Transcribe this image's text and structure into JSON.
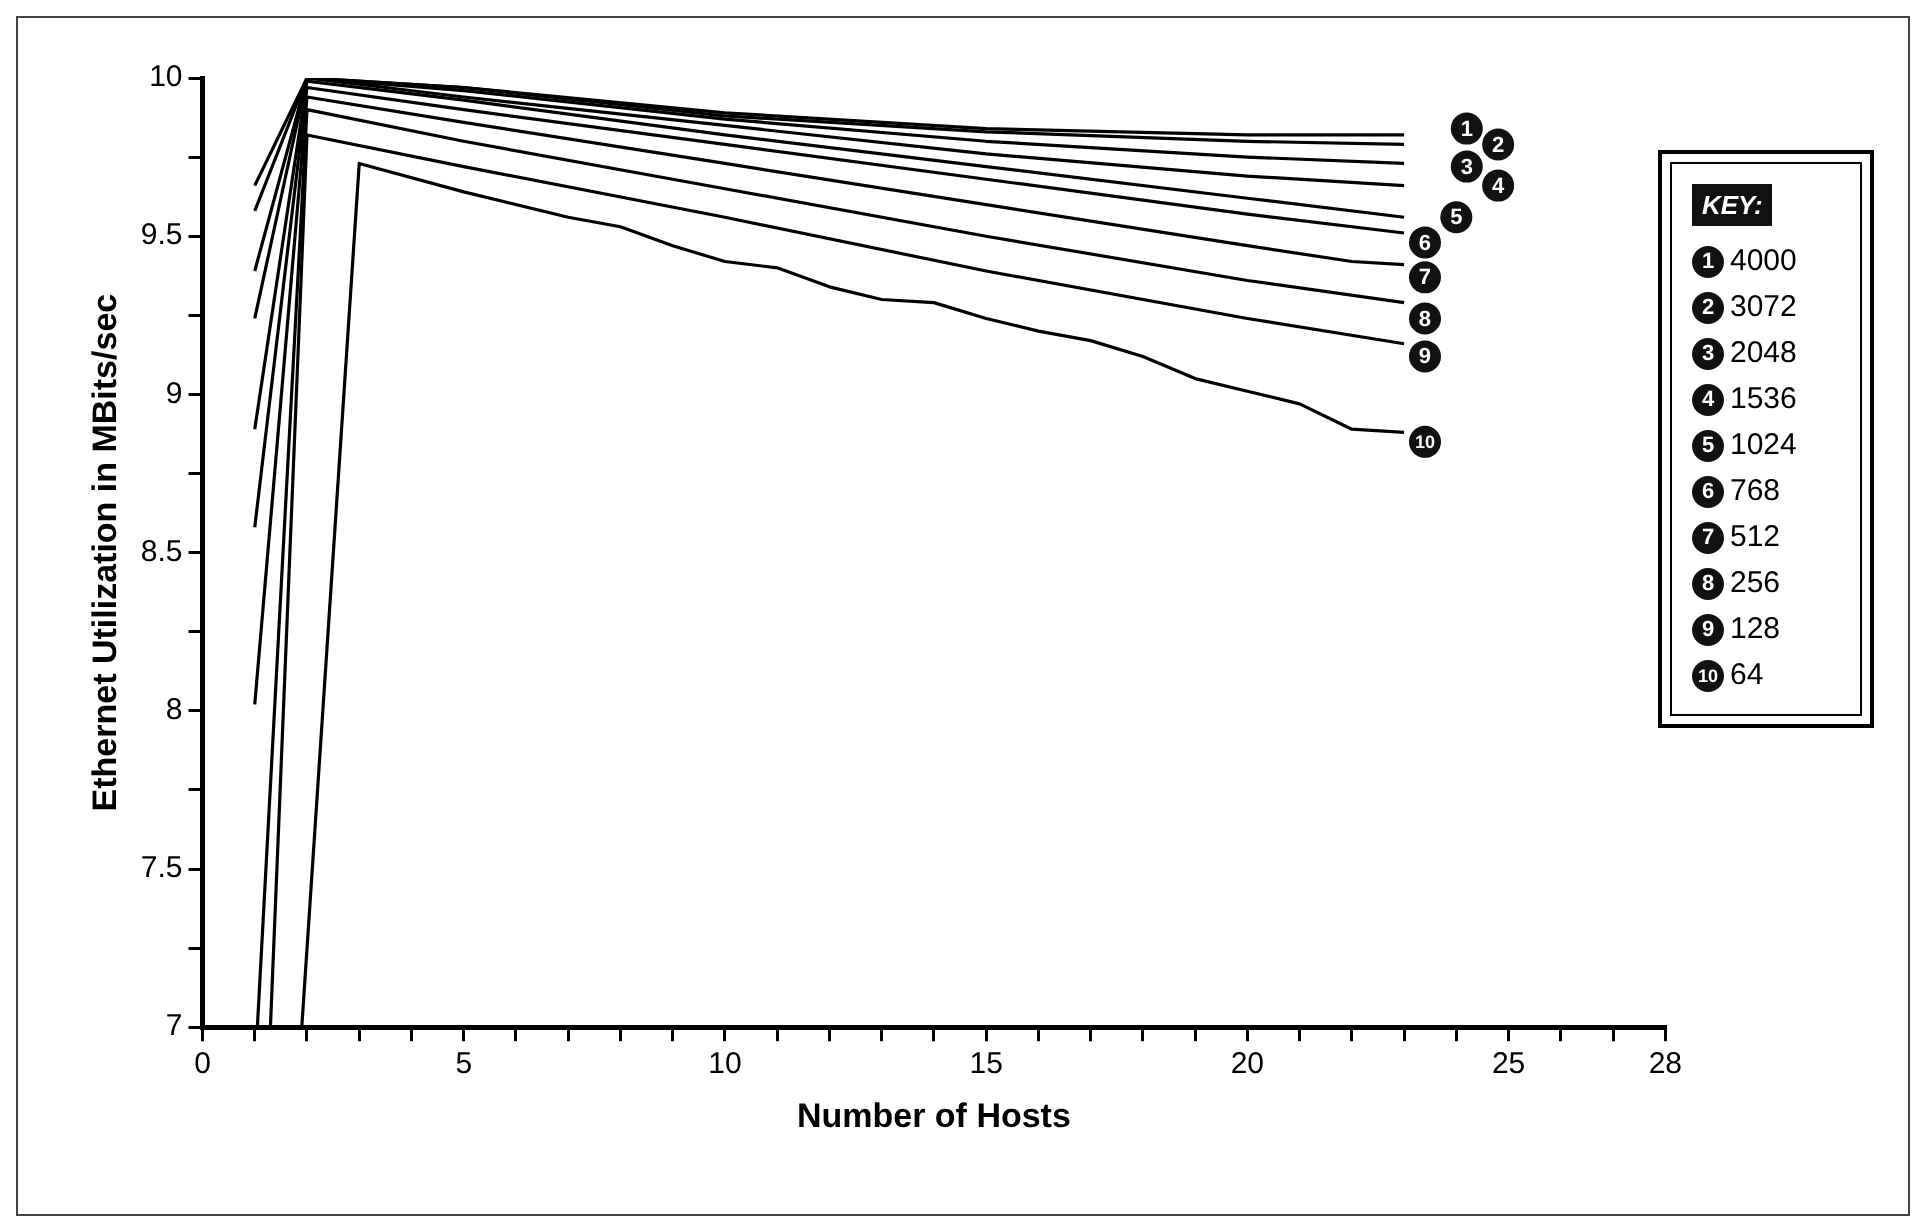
{
  "chart_data": {
    "type": "line",
    "xlabel": "Number of Hosts",
    "ylabel": "Ethernet Utilization in MBits/sec",
    "legend_title": "KEY:",
    "legend": "right",
    "grid": false,
    "marker": "none",
    "line_style": "solid",
    "xlim": [
      0,
      28
    ],
    "xticks": [
      0,
      {
        "value": 1,
        "label": null
      },
      {
        "value": 2,
        "label": null
      },
      {
        "value": 3,
        "label": null
      },
      {
        "value": 4,
        "label": null
      },
      5,
      {
        "value": 6,
        "label": null
      },
      {
        "value": 7,
        "label": null
      },
      {
        "value": 8,
        "label": null
      },
      {
        "value": 9,
        "label": null
      },
      10,
      {
        "value": 11,
        "label": null
      },
      {
        "value": 12,
        "label": null
      },
      {
        "value": 13,
        "label": null
      },
      {
        "value": 14,
        "label": null
      },
      15,
      {
        "value": 16,
        "label": null
      },
      {
        "value": 17,
        "label": null
      },
      {
        "value": 18,
        "label": null
      },
      {
        "value": 19,
        "label": null
      },
      20,
      {
        "value": 21,
        "label": null
      },
      {
        "value": 22,
        "label": null
      },
      {
        "value": 23,
        "label": null
      },
      {
        "value": 24,
        "label": null
      },
      25,
      {
        "value": 26,
        "label": null
      },
      {
        "value": 27,
        "label": null
      },
      28
    ],
    "ylim": [
      7,
      10
    ],
    "yticks": [
      7,
      {
        "value": 7.25,
        "label": null
      },
      7.5,
      {
        "value": 7.75,
        "label": null
      },
      8,
      {
        "value": 8.25,
        "label": null
      },
      8.5,
      {
        "value": 8.75,
        "label": null
      },
      9,
      {
        "value": 9.25,
        "label": null
      },
      9.5,
      {
        "value": 9.75,
        "label": null
      },
      10
    ],
    "series": [
      {
        "name": "4000",
        "color": "#000000",
        "x": [
          1,
          2,
          5,
          10,
          15,
          20,
          23
        ],
        "values": [
          9.66,
          10,
          9.97,
          9.89,
          9.84,
          9.82,
          9.82
        ]
      },
      {
        "name": "3072",
        "color": "#000000",
        "x": [
          1,
          2,
          5,
          10,
          15,
          20,
          23
        ],
        "values": [
          9.58,
          10,
          9.97,
          9.88,
          9.83,
          9.8,
          9.79
        ]
      },
      {
        "name": "2048",
        "color": "#000000",
        "x": [
          1,
          2,
          5,
          10,
          15,
          20,
          23
        ],
        "values": [
          9.39,
          10,
          9.96,
          9.87,
          9.8,
          9.75,
          9.73
        ]
      },
      {
        "name": "1536",
        "color": "#000000",
        "x": [
          1,
          2,
          5,
          10,
          15,
          20,
          23
        ],
        "values": [
          9.24,
          10,
          9.94,
          9.85,
          9.76,
          9.69,
          9.66
        ]
      },
      {
        "name": "1024",
        "color": "#000000",
        "x": [
          1,
          2,
          5,
          10,
          15,
          20,
          23
        ],
        "values": [
          8.89,
          9.99,
          9.93,
          9.82,
          9.72,
          9.62,
          9.56
        ]
      },
      {
        "name": "768",
        "color": "#000000",
        "x": [
          1,
          2,
          5,
          10,
          15,
          20,
          23
        ],
        "values": [
          8.58,
          9.97,
          9.9,
          9.79,
          9.68,
          9.57,
          9.51
        ]
      },
      {
        "name": "512",
        "color": "#000000",
        "x": [
          1,
          2,
          5,
          10,
          15,
          20,
          22,
          23
        ],
        "values": [
          8.02,
          9.94,
          9.86,
          9.73,
          9.6,
          9.47,
          9.42,
          9.41
        ]
      },
      {
        "name": "256",
        "color": "#000000",
        "x": [
          1.05,
          2,
          5,
          10,
          15,
          20,
          23
        ],
        "values": [
          7,
          9.9,
          9.8,
          9.65,
          9.5,
          9.36,
          9.29
        ]
      },
      {
        "name": "128",
        "color": "#000000",
        "x": [
          1.3,
          2,
          5,
          10,
          15,
          20,
          23
        ],
        "values": [
          7,
          9.82,
          9.72,
          9.56,
          9.39,
          9.24,
          9.16
        ]
      },
      {
        "name": "64",
        "color": "#000000",
        "x": [
          1.9,
          3,
          5,
          7,
          8,
          9,
          10,
          11,
          12,
          13,
          14,
          15,
          16,
          17,
          18,
          19,
          20,
          21,
          22,
          23
        ],
        "values": [
          7,
          9.73,
          9.64,
          9.56,
          9.53,
          9.47,
          9.42,
          9.4,
          9.34,
          9.3,
          9.29,
          9.24,
          9.2,
          9.17,
          9.12,
          9.05,
          9.01,
          8.97,
          8.89,
          8.88
        ]
      }
    ],
    "annotations": [
      {
        "text": "1",
        "x": 24.2,
        "y": 9.84
      },
      {
        "text": "2",
        "x": 24.8,
        "y": 9.79
      },
      {
        "text": "3",
        "x": 24.2,
        "y": 9.72
      },
      {
        "text": "4",
        "x": 24.8,
        "y": 9.66
      },
      {
        "text": "5",
        "x": 24.0,
        "y": 9.56
      },
      {
        "text": "6",
        "x": 23.4,
        "y": 9.48
      },
      {
        "text": "7",
        "x": 23.4,
        "y": 9.37
      },
      {
        "text": "8",
        "x": 23.4,
        "y": 9.24
      },
      {
        "text": "9",
        "x": 23.4,
        "y": 9.12
      },
      {
        "text": "10",
        "x": 23.4,
        "y": 8.85
      }
    ]
  }
}
